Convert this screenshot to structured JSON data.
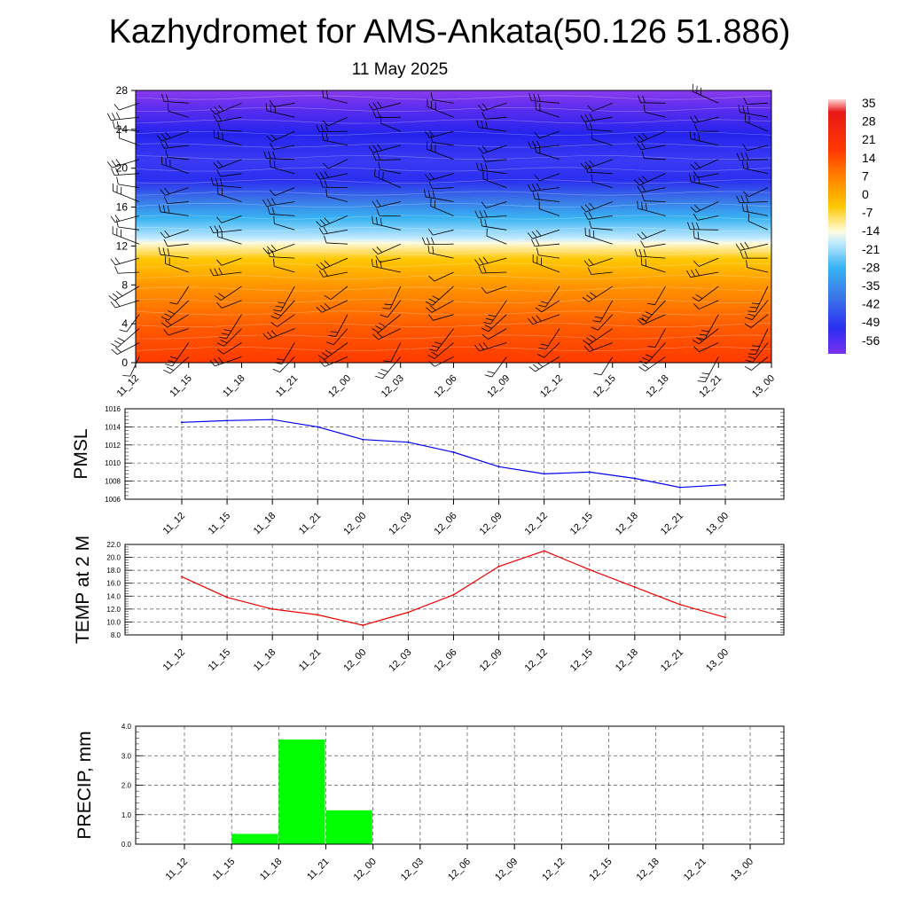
{
  "title": "Kazhydromet for AMS-Ankata(50.126 51.886)",
  "subtitle": "11 May 2025",
  "chart_data": [
    {
      "type": "heatmap",
      "description_units": "temperature cross-section with wind barbs",
      "x_categories": [
        "11_12",
        "11_15",
        "11_18",
        "11_21",
        "12_00",
        "12_03",
        "12_06",
        "12_09",
        "12_12",
        "12_15",
        "12_18",
        "12_21",
        "13_00"
      ],
      "y_ticks": [
        0,
        4,
        8,
        12,
        16,
        20,
        24,
        28
      ],
      "ylim": [
        0,
        28
      ],
      "colorbar_labels": [
        "35",
        "28",
        "21",
        "14",
        "7",
        "0",
        "-7",
        "-14",
        "-21",
        "-28",
        "-35",
        "-42",
        "-49",
        "-56"
      ],
      "colors": {
        "hot": "#ff2a00",
        "warm": "#ffa000",
        "neutral": "#fffce0",
        "cold": "#30b0f0",
        "frigid": "#5a20e8"
      }
    },
    {
      "type": "line",
      "ylabel": "PMSL",
      "categories": [
        "11_12",
        "11_15",
        "11_18",
        "11_21",
        "12_00",
        "12_03",
        "12_06",
        "12_09",
        "12_12",
        "12_15",
        "12_18",
        "12_21",
        "13_00"
      ],
      "values": [
        1014.5,
        1014.7,
        1014.8,
        1014.0,
        1012.6,
        1012.3,
        1011.2,
        1009.6,
        1008.8,
        1009.0,
        1008.3,
        1007.3,
        1007.6
      ],
      "ylim": [
        1006,
        1016
      ],
      "y_ticks": [
        "1006",
        "1008",
        "1010",
        "1012",
        "1014",
        "1016"
      ],
      "line_color": "#0000ee",
      "grid": true
    },
    {
      "type": "line",
      "ylabel": "TEMP at 2 M",
      "categories": [
        "11_12",
        "11_15",
        "11_18",
        "11_21",
        "12_00",
        "12_03",
        "12_06",
        "12_09",
        "12_12",
        "12_15",
        "12_18",
        "12_21",
        "13_00"
      ],
      "values": [
        17.0,
        13.8,
        12.0,
        11.1,
        9.5,
        11.5,
        14.2,
        18.6,
        21.0,
        18.1,
        15.4,
        12.7,
        10.7
      ],
      "ylim": [
        8,
        22
      ],
      "y_ticks": [
        "8.0",
        "10.0",
        "12.0",
        "14.0",
        "16.0",
        "18.0",
        "20.0",
        "22.0"
      ],
      "line_color": "#ee0000",
      "grid": true
    },
    {
      "type": "bar",
      "ylabel": "PRECIP, mm",
      "categories": [
        "11_12",
        "11_15",
        "11_18",
        "11_21",
        "12_00",
        "12_03",
        "12_06",
        "12_09",
        "12_12",
        "12_15",
        "12_18",
        "12_21",
        "13_00"
      ],
      "values": [
        0,
        0,
        0.35,
        3.55,
        1.15,
        0,
        0,
        0,
        0,
        0,
        0,
        0,
        0
      ],
      "ylim": [
        0,
        4
      ],
      "y_ticks": [
        "0.0",
        "1.0",
        "2.0",
        "3.0",
        "4.0"
      ],
      "bar_color": "#00ff00",
      "grid": true
    }
  ]
}
